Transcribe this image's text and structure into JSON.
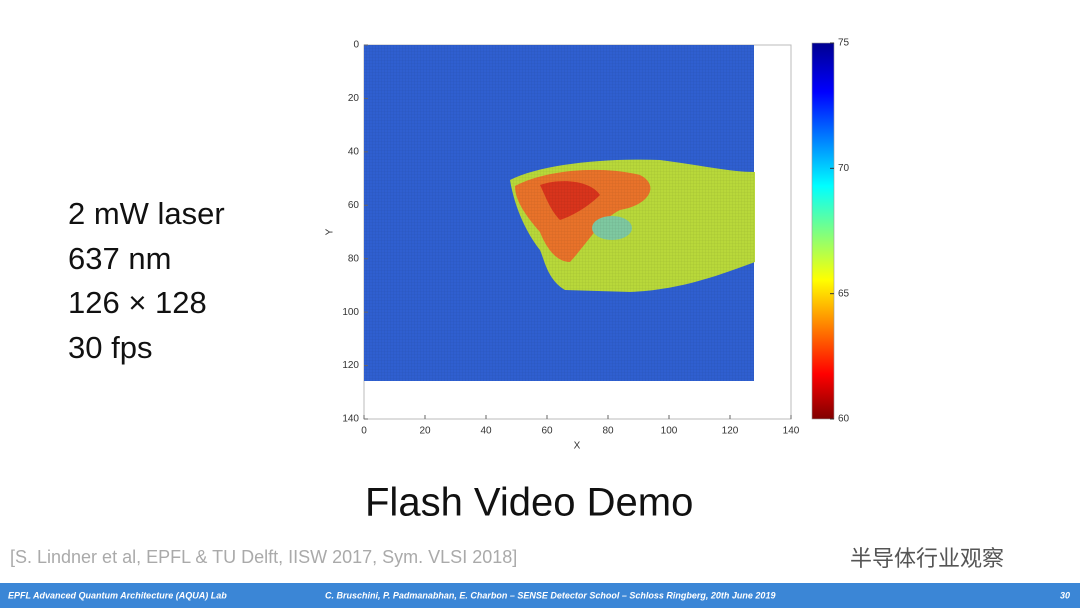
{
  "slide": {
    "bullets": [
      "2 mW laser",
      "637 nm",
      "126 × 128",
      "30 fps"
    ],
    "caption": "Flash Video Demo",
    "reference": "[S. Lindner et al, EPFL & TU Delft, IISW 2017, Sym. VLSI 2018]",
    "watermark": "半导体行业观察",
    "footer_left": "EPFL Advanced Quantum Architecture (AQUA) Lab",
    "footer_center": "C. Bruschini, P. Padmanabhan, E. Charbon – SENSE Detector School – Schloss Ringberg, 20th June 2019",
    "page": "30"
  },
  "chart_data": {
    "type": "heatmap",
    "x_label": "X",
    "y_label": "Y",
    "xlim": [
      0,
      140
    ],
    "xticks": [
      0,
      20,
      40,
      60,
      80,
      100,
      120,
      140
    ],
    "ylim": [
      0,
      140
    ],
    "yticks": [
      0,
      20,
      40,
      60,
      80,
      100,
      120,
      140
    ],
    "y_reversed": true,
    "colorbar_lim": [
      60,
      75
    ],
    "colorbar_ticks": [
      60,
      65,
      70,
      75
    ],
    "colormap": "jet"
  }
}
